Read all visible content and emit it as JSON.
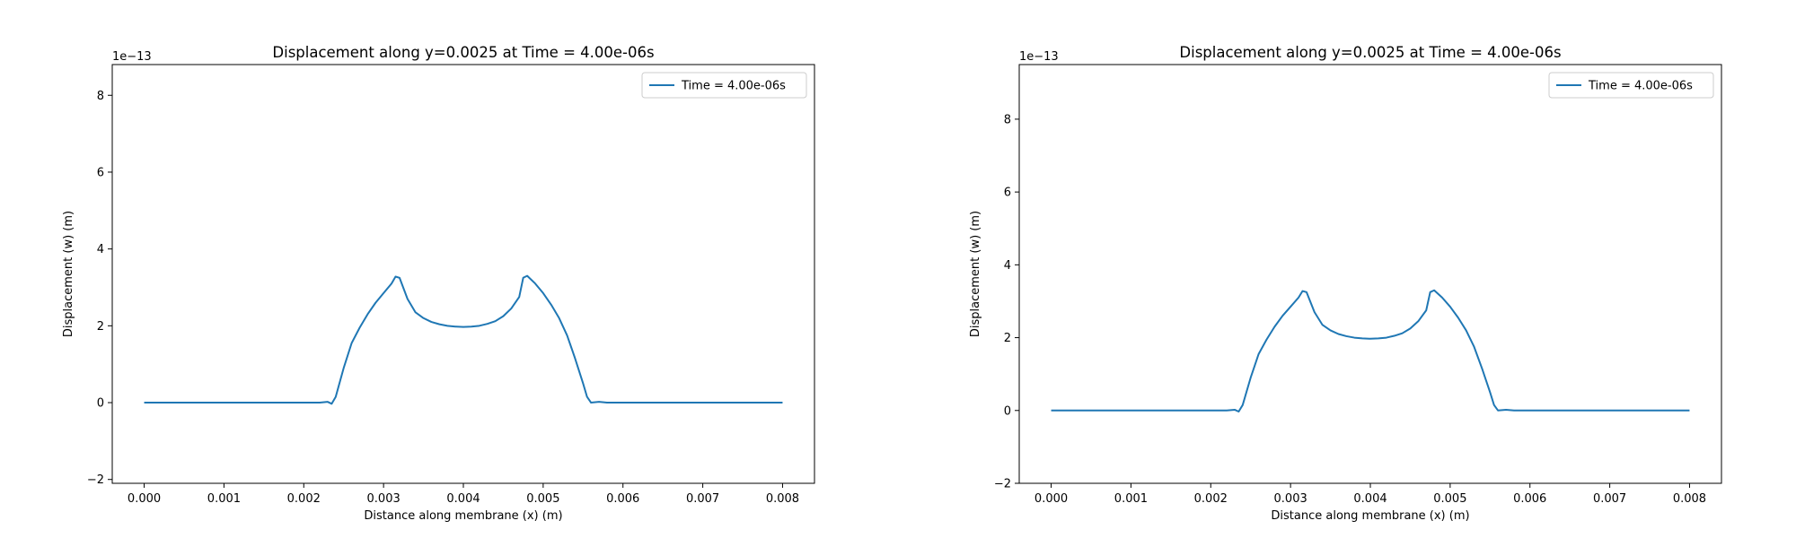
{
  "chart_data": [
    {
      "type": "line",
      "title": "Displacement along y=0.0025 at Time = 4.00e-06s",
      "xlabel": "Distance along membrane (x) (m)",
      "ylabel": "Displacement (w) (m)",
      "offset_text": "1e−13",
      "xlim": [
        -0.0004,
        0.0004
      ],
      "ylim": [
        -2.1,
        8.8
      ],
      "xticks": [
        0.0,
        0.001,
        0.002,
        0.003,
        0.004,
        0.005,
        0.006,
        0.007,
        0.008
      ],
      "xtick_labels": [
        "0.000",
        "0.001",
        "0.002",
        "0.003",
        "0.004",
        "0.005",
        "0.006",
        "0.007",
        "0.008"
      ],
      "yticks": [
        -2,
        0,
        2,
        4,
        6,
        8
      ],
      "ytick_labels": [
        "−2",
        "0",
        "2",
        "4",
        "6",
        "8"
      ],
      "grid": false,
      "legend_position": "top-right",
      "color": "#1f77b4",
      "series": [
        {
          "name": "Time = 4.00e-06s",
          "x": [
            0.0,
            0.0022,
            0.0023,
            0.00235,
            0.0024,
            0.0025,
            0.0026,
            0.0027,
            0.0028,
            0.0029,
            0.003,
            0.0031,
            0.00315,
            0.0032,
            0.0033,
            0.0034,
            0.0035,
            0.0036,
            0.0037,
            0.0038,
            0.0039,
            0.004,
            0.0041,
            0.0042,
            0.0043,
            0.0044,
            0.0045,
            0.0046,
            0.0047,
            0.00475,
            0.0048,
            0.0049,
            0.005,
            0.0051,
            0.0052,
            0.0053,
            0.0054,
            0.0055,
            0.00555,
            0.0056,
            0.0057,
            0.0058,
            0.008
          ],
          "y": [
            0.0,
            0.0,
            0.02,
            -0.03,
            0.15,
            0.9,
            1.55,
            1.95,
            2.3,
            2.6,
            2.85,
            3.1,
            3.28,
            3.25,
            2.7,
            2.35,
            2.2,
            2.1,
            2.04,
            2.0,
            1.98,
            1.97,
            1.98,
            2.0,
            2.05,
            2.12,
            2.25,
            2.45,
            2.75,
            3.25,
            3.3,
            3.1,
            2.85,
            2.55,
            2.2,
            1.75,
            1.15,
            0.5,
            0.15,
            0.0,
            0.02,
            0.0,
            0.0
          ]
        }
      ]
    },
    {
      "type": "line",
      "title": "Displacement along y=0.0025 at Time = 4.00e-06s",
      "xlabel": "Distance along membrane (x) (m)",
      "ylabel": "Displacement (w) (m)",
      "offset_text": "1e−13",
      "xlim": [
        -0.0004,
        0.0004
      ],
      "ylim": [
        -2.0,
        9.5
      ],
      "xticks": [
        0.0,
        0.001,
        0.002,
        0.003,
        0.004,
        0.005,
        0.006,
        0.007,
        0.008
      ],
      "xtick_labels": [
        "0.000",
        "0.001",
        "0.002",
        "0.003",
        "0.004",
        "0.005",
        "0.006",
        "0.007",
        "0.008"
      ],
      "yticks": [
        -2,
        0,
        2,
        4,
        6,
        8
      ],
      "ytick_labels": [
        "−2",
        "0",
        "2",
        "4",
        "6",
        "8"
      ],
      "grid": false,
      "legend_position": "top-right",
      "color": "#1f77b4",
      "series": [
        {
          "name": "Time = 4.00e-06s",
          "x": [
            0.0,
            0.0022,
            0.0023,
            0.00235,
            0.0024,
            0.0025,
            0.0026,
            0.0027,
            0.0028,
            0.0029,
            0.003,
            0.0031,
            0.00315,
            0.0032,
            0.0033,
            0.0034,
            0.0035,
            0.0036,
            0.0037,
            0.0038,
            0.0039,
            0.004,
            0.0041,
            0.0042,
            0.0043,
            0.0044,
            0.0045,
            0.0046,
            0.0047,
            0.00475,
            0.0048,
            0.0049,
            0.005,
            0.0051,
            0.0052,
            0.0053,
            0.0054,
            0.0055,
            0.00555,
            0.0056,
            0.0057,
            0.0058,
            0.008
          ],
          "y": [
            0.0,
            0.0,
            0.02,
            -0.03,
            0.15,
            0.9,
            1.55,
            1.95,
            2.3,
            2.6,
            2.85,
            3.1,
            3.28,
            3.25,
            2.7,
            2.35,
            2.2,
            2.1,
            2.04,
            2.0,
            1.98,
            1.97,
            1.98,
            2.0,
            2.05,
            2.12,
            2.25,
            2.45,
            2.75,
            3.25,
            3.3,
            3.1,
            2.85,
            2.55,
            2.2,
            1.75,
            1.15,
            0.5,
            0.15,
            0.0,
            0.02,
            0.0,
            0.0
          ]
        }
      ]
    }
  ]
}
